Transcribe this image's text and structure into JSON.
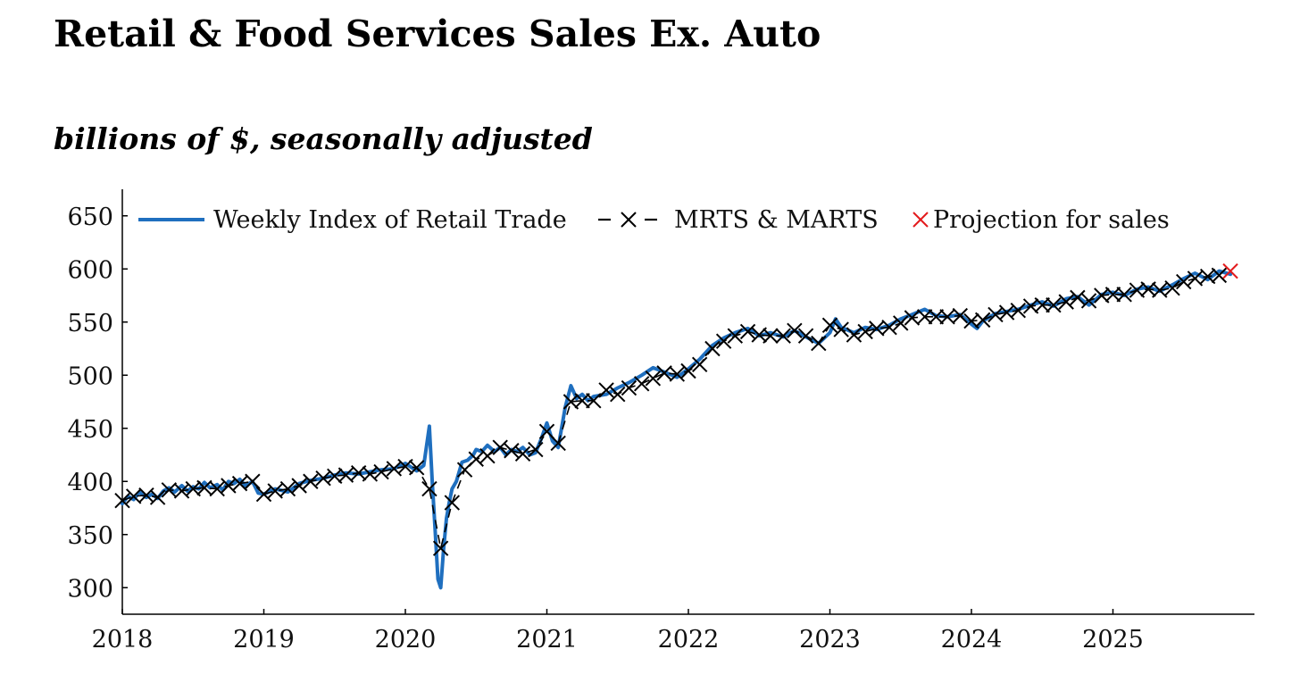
{
  "chart_data": {
    "type": "line",
    "title": "Retail & Food Services Sales Ex. Auto",
    "subtitle": "billions of $, seasonally adjusted",
    "xlabel": "",
    "ylabel": "",
    "xlim": [
      2018.0,
      2026.0
    ],
    "ylim": [
      275,
      675
    ],
    "yticks": [
      300,
      350,
      400,
      450,
      500,
      550,
      600,
      650
    ],
    "xticks": [
      2018,
      2019,
      2020,
      2021,
      2022,
      2023,
      2024,
      2025
    ],
    "grid": false,
    "legend_position": "top",
    "series": [
      {
        "name": "Weekly Index of Retail Trade",
        "style": "solid",
        "color": "#1f6fbf",
        "x": [
          2018.0,
          2018.04,
          2018.08,
          2018.12,
          2018.17,
          2018.21,
          2018.25,
          2018.29,
          2018.33,
          2018.37,
          2018.42,
          2018.46,
          2018.5,
          2018.54,
          2018.58,
          2018.62,
          2018.67,
          2018.71,
          2018.75,
          2018.79,
          2018.83,
          2018.87,
          2018.92,
          2018.96,
          2019.0,
          2019.08,
          2019.17,
          2019.25,
          2019.33,
          2019.42,
          2019.5,
          2019.58,
          2019.67,
          2019.75,
          2019.83,
          2019.92,
          2020.0,
          2020.08,
          2020.13,
          2020.17,
          2020.19,
          2020.21,
          2020.23,
          2020.25,
          2020.27,
          2020.29,
          2020.31,
          2020.33,
          2020.36,
          2020.4,
          2020.44,
          2020.48,
          2020.5,
          2020.54,
          2020.58,
          2020.63,
          2020.67,
          2020.71,
          2020.75,
          2020.79,
          2020.83,
          2020.88,
          2020.92,
          2020.96,
          2021.0,
          2021.04,
          2021.08,
          2021.13,
          2021.17,
          2021.21,
          2021.25,
          2021.29,
          2021.33,
          2021.42,
          2021.5,
          2021.58,
          2021.67,
          2021.75,
          2021.83,
          2021.92,
          2022.0,
          2022.08,
          2022.17,
          2022.25,
          2022.33,
          2022.42,
          2022.5,
          2022.58,
          2022.67,
          2022.75,
          2022.83,
          2022.92,
          2023.0,
          2023.04,
          2023.08,
          2023.17,
          2023.25,
          2023.33,
          2023.42,
          2023.5,
          2023.58,
          2023.67,
          2023.75,
          2023.83,
          2023.92,
          2024.0,
          2024.04,
          2024.08,
          2024.17,
          2024.25,
          2024.33,
          2024.42,
          2024.5,
          2024.58,
          2024.67,
          2024.75,
          2024.83,
          2024.92,
          2025.0,
          2025.08,
          2025.17,
          2025.25,
          2025.33,
          2025.42,
          2025.5,
          2025.58,
          2025.67,
          2025.75,
          2025.83
        ],
        "y": [
          379,
          386,
          383,
          390,
          385,
          388,
          384,
          391,
          394,
          390,
          396,
          391,
          395,
          393,
          399,
          394,
          397,
          392,
          400,
          398,
          402,
          396,
          400,
          389,
          388,
          393,
          390,
          398,
          401,
          403,
          406,
          408,
          407,
          409,
          411,
          412,
          417,
          410,
          415,
          452,
          400,
          355,
          308,
          300,
          336,
          365,
          380,
          393,
          400,
          418,
          420,
          425,
          430,
          428,
          434,
          428,
          432,
          425,
          430,
          428,
          432,
          425,
          427,
          440,
          455,
          438,
          432,
          470,
          490,
          478,
          482,
          476,
          480,
          482,
          488,
          493,
          500,
          507,
          503,
          498,
          506,
          515,
          528,
          535,
          540,
          544,
          537,
          540,
          536,
          542,
          536,
          530,
          540,
          553,
          545,
          540,
          545,
          543,
          547,
          553,
          557,
          562,
          556,
          555,
          557,
          548,
          544,
          551,
          558,
          560,
          562,
          566,
          569,
          565,
          572,
          574,
          566,
          576,
          578,
          575,
          581,
          583,
          579,
          585,
          591,
          596,
          590,
          598,
          595
        ]
      },
      {
        "name": "MRTS & MARTS",
        "style": "dashed",
        "marker": "x",
        "color": "#000000",
        "x": [
          2018.0,
          2018.08,
          2018.17,
          2018.25,
          2018.33,
          2018.42,
          2018.5,
          2018.58,
          2018.67,
          2018.75,
          2018.83,
          2018.92,
          2019.0,
          2019.08,
          2019.17,
          2019.25,
          2019.33,
          2019.42,
          2019.5,
          2019.58,
          2019.67,
          2019.75,
          2019.83,
          2019.92,
          2020.0,
          2020.08,
          2020.17,
          2020.25,
          2020.33,
          2020.42,
          2020.5,
          2020.58,
          2020.67,
          2020.75,
          2020.83,
          2020.92,
          2021.0,
          2021.08,
          2021.17,
          2021.25,
          2021.33,
          2021.42,
          2021.5,
          2021.58,
          2021.67,
          2021.75,
          2021.83,
          2021.92,
          2022.0,
          2022.08,
          2022.17,
          2022.25,
          2022.33,
          2022.42,
          2022.5,
          2022.58,
          2022.67,
          2022.75,
          2022.83,
          2022.92,
          2023.0,
          2023.08,
          2023.17,
          2023.25,
          2023.33,
          2023.42,
          2023.5,
          2023.58,
          2023.67,
          2023.75,
          2023.83,
          2023.92,
          2024.0,
          2024.08,
          2024.17,
          2024.25,
          2024.33,
          2024.42,
          2024.5,
          2024.58,
          2024.67,
          2024.75,
          2024.83,
          2024.92,
          2025.0,
          2025.08,
          2025.17,
          2025.25,
          2025.33,
          2025.42,
          2025.5,
          2025.58,
          2025.67,
          2025.75
        ],
        "y": [
          382,
          386,
          387,
          385,
          392,
          391,
          393,
          394,
          393,
          396,
          398,
          400,
          388,
          391,
          393,
          396,
          400,
          403,
          405,
          406,
          408,
          407,
          409,
          412,
          414,
          413,
          393,
          337,
          380,
          411,
          421,
          424,
          432,
          429,
          426,
          430,
          447,
          436,
          475,
          476,
          476,
          486,
          482,
          488,
          492,
          497,
          502,
          501,
          504,
          510,
          525,
          532,
          537,
          541,
          538,
          537,
          537,
          542,
          537,
          530,
          547,
          543,
          538,
          541,
          544,
          545,
          549,
          554,
          555,
          555,
          555,
          556,
          551,
          552,
          557,
          559,
          561,
          565,
          566,
          566,
          569,
          573,
          570,
          575,
          576,
          576,
          580,
          581,
          580,
          582,
          588,
          591,
          593,
          594
        ]
      },
      {
        "name": "Projection for sales",
        "style": "marker-only",
        "marker": "x",
        "color": "#e31a1c",
        "x": [
          2025.83
        ],
        "y": [
          598
        ]
      }
    ]
  }
}
